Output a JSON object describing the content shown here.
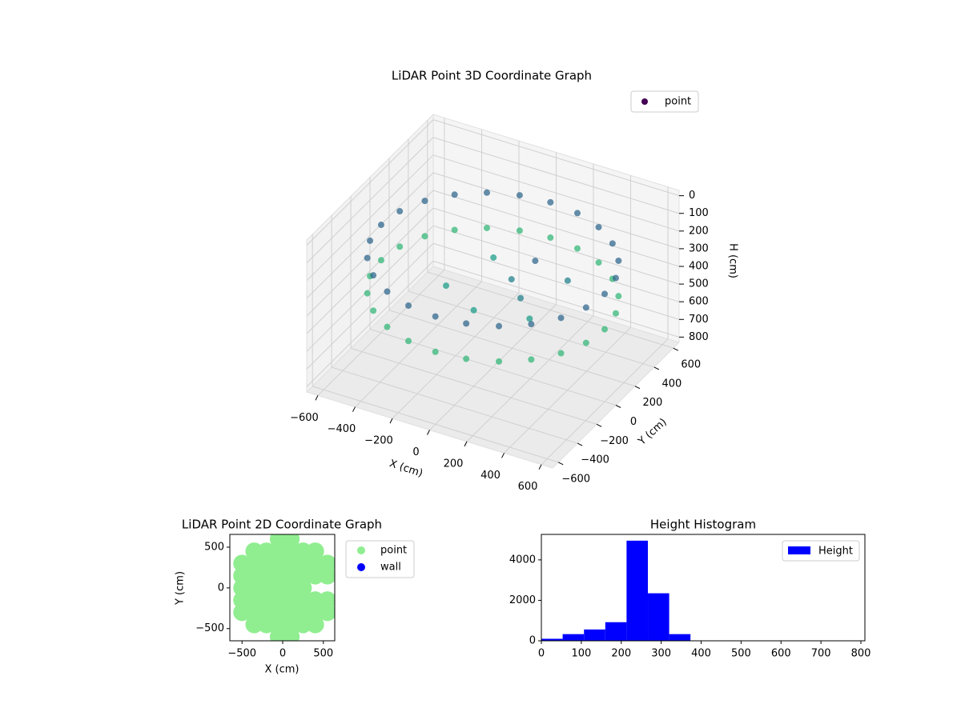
{
  "chart_data": [
    {
      "type": "scatter3d",
      "title": "LiDAR Point 3D Coordinate Graph",
      "xlabel": "X (cm)",
      "ylabel": "Y (cm)",
      "zlabel": "H (cm)",
      "xlim": [
        -660,
        660
      ],
      "ylim": [
        -660,
        660
      ],
      "zlim": [
        -30,
        830
      ],
      "z_inverted": true,
      "xticks": [
        {
          "value": -600,
          "label": "−600"
        },
        {
          "value": -400,
          "label": "−400"
        },
        {
          "value": -200,
          "label": "−200"
        },
        0,
        200,
        400,
        600
      ],
      "yticks": [
        {
          "value": -600,
          "label": "−600"
        },
        {
          "value": -400,
          "label": "−400"
        },
        {
          "value": -200,
          "label": "−200"
        },
        0,
        200,
        400,
        600
      ],
      "zticks": [
        0,
        100,
        200,
        300,
        400,
        500,
        600,
        700,
        800
      ],
      "grid": true,
      "legend": "upper right",
      "colormap": "viridis",
      "series": [
        {
          "name": "point",
          "color": "#440154",
          "x": [
            600,
            580,
            520,
            424,
            300,
            155,
            0,
            -155,
            -300,
            -424,
            -520,
            -580,
            -600,
            -580,
            -520,
            -424,
            -300,
            -155,
            0,
            155,
            300,
            424,
            520,
            580,
            600,
            580,
            520,
            424,
            300,
            155,
            0,
            -155,
            -300,
            -424,
            -520,
            -580,
            -600,
            -580,
            -520,
            -424,
            -300,
            -155,
            0,
            155,
            300,
            424,
            520,
            580,
            100,
            200,
            300,
            0,
            -200,
            150,
            350,
            -100
          ],
          "y": [
            0,
            155,
            300,
            424,
            520,
            580,
            600,
            580,
            520,
            424,
            300,
            155,
            0,
            -155,
            -300,
            -424,
            -520,
            -580,
            -600,
            -580,
            -520,
            -424,
            -300,
            -155,
            0,
            155,
            300,
            424,
            520,
            580,
            600,
            580,
            520,
            424,
            300,
            155,
            0,
            -155,
            -300,
            -424,
            -520,
            -580,
            -600,
            -580,
            -520,
            -424,
            -300,
            -155,
            0,
            -100,
            -200,
            -200,
            -100,
            150,
            100,
            200
          ],
          "z": [
            220,
            220,
            220,
            220,
            220,
            220,
            220,
            220,
            220,
            220,
            220,
            220,
            220,
            220,
            220,
            220,
            220,
            220,
            220,
            220,
            220,
            220,
            220,
            220,
            420,
            420,
            420,
            420,
            420,
            420,
            420,
            420,
            420,
            420,
            420,
            420,
            420,
            420,
            420,
            420,
            420,
            420,
            420,
            420,
            420,
            420,
            420,
            420,
            300,
            320,
            350,
            400,
            380,
            260,
            280,
            350
          ]
        }
      ]
    },
    {
      "type": "scatter",
      "title": "LiDAR Point 2D Coordinate Graph",
      "xlabel": "X (cm)",
      "ylabel": "Y (cm)",
      "xlim": [
        -650,
        640
      ],
      "ylim": [
        -650,
        657
      ],
      "xticks": [
        {
          "value": -500,
          "label": "−500"
        },
        0,
        500
      ],
      "yticks": [
        {
          "value": -500,
          "label": "−500"
        },
        0,
        500
      ],
      "legend": "outside right",
      "series": [
        {
          "name": "point",
          "color": "#90ee90",
          "x": [
            -500,
            -500,
            -500,
            -500,
            -500,
            -350,
            -350,
            -350,
            -350,
            -350,
            -350,
            -350,
            -200,
            -200,
            -200,
            -200,
            -200,
            -200,
            -200,
            -50,
            -50,
            -50,
            -50,
            -50,
            -50,
            -50,
            -50,
            -50,
            100,
            100,
            100,
            100,
            100,
            100,
            100,
            100,
            100,
            250,
            250,
            250,
            250,
            250,
            250,
            250,
            400,
            400,
            400,
            400,
            400,
            400,
            550,
            550,
            550,
            550
          ],
          "y": [
            -300,
            -150,
            0,
            150,
            300,
            -450,
            -300,
            -150,
            0,
            150,
            300,
            450,
            -450,
            -300,
            -150,
            0,
            150,
            300,
            450,
            -600,
            -450,
            -300,
            -150,
            0,
            150,
            300,
            450,
            600,
            -600,
            -450,
            -300,
            -150,
            0,
            150,
            300,
            450,
            600,
            -450,
            -300,
            -150,
            0,
            150,
            300,
            450,
            -450,
            -300,
            -150,
            150,
            300,
            450,
            -300,
            -150,
            150,
            300
          ]
        },
        {
          "name": "wall",
          "color": "#0000ff",
          "x": [],
          "y": []
        }
      ]
    },
    {
      "type": "histogram",
      "title": "Height Histogram",
      "bins": [
        0,
        53.3,
        106.7,
        160,
        213.3,
        266.7,
        320,
        373.3,
        426.7,
        480,
        533.3,
        586.7,
        640,
        693.3,
        746.7,
        800
      ],
      "xlim": [
        0,
        810
      ],
      "ylim": [
        0,
        5260
      ],
      "xticks": [
        0,
        100,
        200,
        300,
        400,
        500,
        600,
        700,
        800
      ],
      "yticks": [
        0,
        2000,
        4000
      ],
      "legend": "upper right",
      "series": [
        {
          "name": "Height",
          "color": "#0000ff",
          "values": [
            100,
            330,
            560,
            920,
            4950,
            2350,
            330,
            0,
            0,
            0,
            0,
            0,
            0,
            0,
            0
          ]
        }
      ]
    }
  ]
}
